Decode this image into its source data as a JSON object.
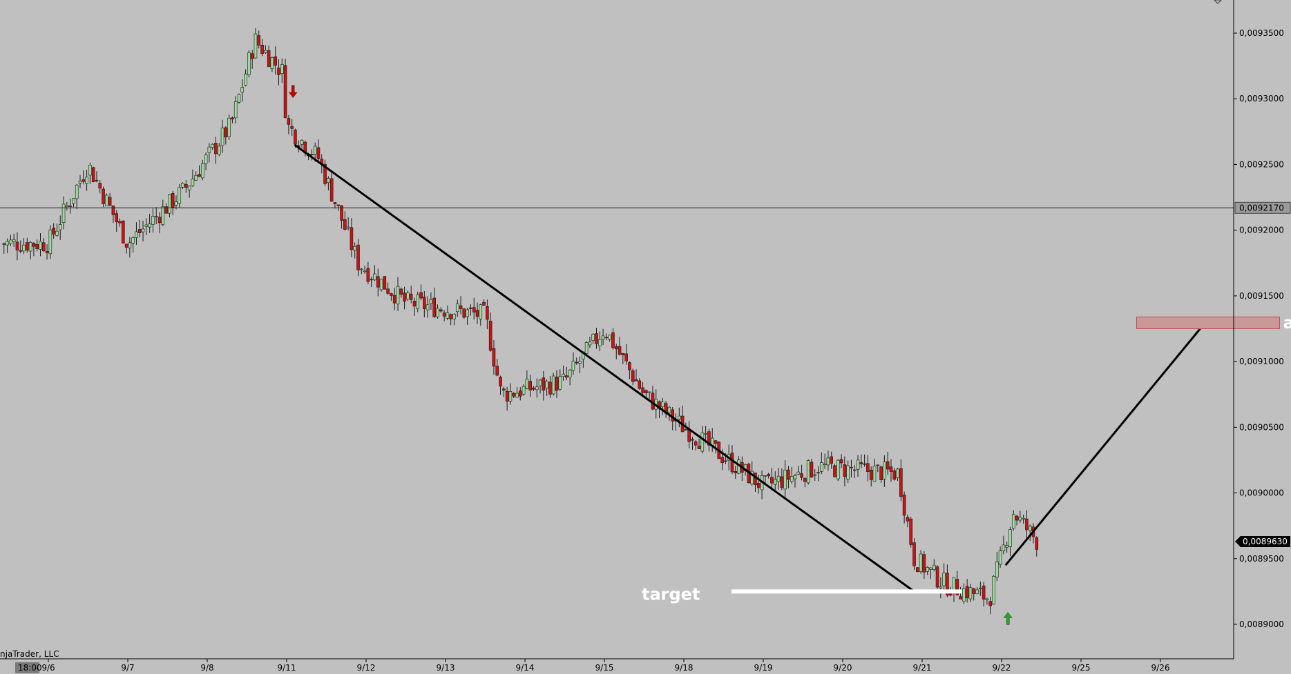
{
  "chart_data": {
    "type": "candlestick",
    "ylim": [
      0.00886,
      0.00938
    ],
    "y_ticks": [
      "0,0093500",
      "0,0093000",
      "0,0092500",
      "0,0092000",
      "0,0091500",
      "0,0091000",
      "0,0090500",
      "0,0090000",
      "0,0089500",
      "0,0089000"
    ],
    "x_ticks": [
      "9/6",
      "9/7",
      "9/8",
      "9/11",
      "9/12",
      "9/13",
      "9/14",
      "9/15",
      "9/18",
      "9/19",
      "9/20",
      "9/21",
      "9/22",
      "9/25",
      "9/26"
    ],
    "session_label": "18:00",
    "footer_text": "njaTrader, LLC",
    "reference_level": {
      "value": 0.009217,
      "label": "0,0092170"
    },
    "last_price": {
      "value": 0.008963,
      "label": "0,0089630"
    },
    "anchors": [
      {
        "day": 0,
        "price": 0.00919
      },
      {
        "day": 0.5,
        "price": 0.00925
      },
      {
        "day": 1.0,
        "price": 0.00919
      },
      {
        "day": 1.7,
        "price": 0.00923
      },
      {
        "day": 2.3,
        "price": 0.00928
      },
      {
        "day": 2.6,
        "price": 0.009345
      },
      {
        "day": 2.95,
        "price": 0.00932
      },
      {
        "day": 3.0,
        "price": 0.00928
      },
      {
        "day": 3.4,
        "price": 0.009255
      },
      {
        "day": 3.9,
        "price": 0.009175
      },
      {
        "day": 4.5,
        "price": 0.009145
      },
      {
        "day": 5.5,
        "price": 0.009135
      },
      {
        "day": 5.7,
        "price": 0.009075
      },
      {
        "day": 6.5,
        "price": 0.009085
      },
      {
        "day": 7.0,
        "price": 0.009125
      },
      {
        "day": 7.5,
        "price": 0.009075
      },
      {
        "day": 8.0,
        "price": 0.00905
      },
      {
        "day": 9.0,
        "price": 0.009005
      },
      {
        "day": 9.7,
        "price": 0.00902
      },
      {
        "day": 10.7,
        "price": 0.009015
      },
      {
        "day": 10.9,
        "price": 0.00895
      },
      {
        "day": 11.3,
        "price": 0.00893
      },
      {
        "day": 11.85,
        "price": 0.00892
      },
      {
        "day": 12.15,
        "price": 0.008985
      },
      {
        "day": 12.45,
        "price": 0.008963
      }
    ],
    "trendline": {
      "start": {
        "day": 3.1,
        "price": 0.009265
      },
      "end": {
        "day": 10.9,
        "price": 0.008925
      }
    },
    "projection_line": {
      "start": {
        "day": 12.05,
        "price": 0.008945
      },
      "end": {
        "day": 14.5,
        "price": 0.009125
      }
    },
    "target_line": {
      "start_day": 8.6,
      "end_day": 11.5,
      "price": 0.008925,
      "label": "target"
    },
    "attractor_zone": {
      "start_day": 13.7,
      "end_day": 15.5,
      "price_top": 0.009134,
      "price_bottom": 0.009125,
      "label": "atractor"
    },
    "signals": [
      {
        "type": "sell-arrow",
        "day": 3.08,
        "price": 0.009305,
        "color": "#cc0000"
      },
      {
        "type": "buy-arrow",
        "day": 12.08,
        "price": 0.008905,
        "color": "#22aa22"
      }
    ],
    "colors": {
      "up": "#9ed89e",
      "down": "#cc1111",
      "background": "#c0c0c0",
      "wick": "#1a1a1a"
    }
  }
}
